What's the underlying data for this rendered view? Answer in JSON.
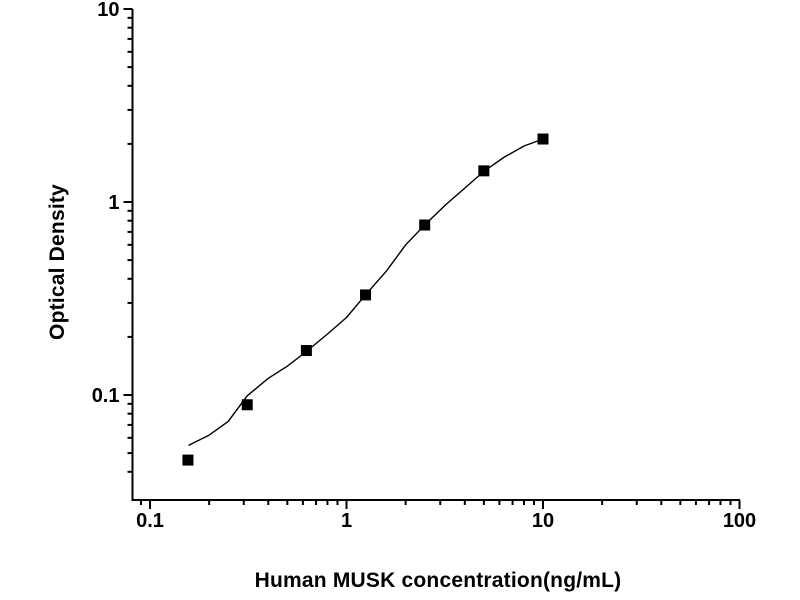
{
  "chart_data": {
    "type": "scatter",
    "title": "",
    "xlabel": "Human MUSK concentration(ng/mL)",
    "ylabel": "Optical Density",
    "x_scale": "log",
    "y_scale": "log",
    "xlim": [
      0.082,
      100
    ],
    "ylim": [
      0.029,
      10
    ],
    "grid": false,
    "legend": "none",
    "colors": {
      "axis": "#000000",
      "marker": "#000000",
      "curve": "#000000",
      "background": "#ffffff"
    },
    "x_ticks": {
      "majors": [
        0.1,
        1,
        10,
        100
      ],
      "labels": [
        "0.1",
        "1",
        "10",
        "100"
      ]
    },
    "y_ticks": {
      "majors": [
        0.1,
        1,
        10
      ],
      "labels": [
        "0.1",
        "1",
        "10"
      ]
    },
    "series": [
      {
        "name": "standard-points",
        "type": "scatter",
        "marker": "square",
        "color": "#000000",
        "points": [
          {
            "x": 0.156,
            "y": 0.046
          },
          {
            "x": 0.3125,
            "y": 0.089
          },
          {
            "x": 0.625,
            "y": 0.17
          },
          {
            "x": 1.25,
            "y": 0.33
          },
          {
            "x": 2.5,
            "y": 0.76
          },
          {
            "x": 5,
            "y": 1.45
          },
          {
            "x": 10,
            "y": 2.12
          }
        ]
      },
      {
        "name": "fitted-curve",
        "type": "line",
        "color": "#000000",
        "points": [
          {
            "x": 0.158,
            "y": 0.055
          },
          {
            "x": 0.2,
            "y": 0.062
          },
          {
            "x": 0.25,
            "y": 0.073
          },
          {
            "x": 0.3125,
            "y": 0.099
          },
          {
            "x": 0.4,
            "y": 0.122
          },
          {
            "x": 0.5,
            "y": 0.141
          },
          {
            "x": 0.625,
            "y": 0.168
          },
          {
            "x": 0.8,
            "y": 0.207
          },
          {
            "x": 1.0,
            "y": 0.252
          },
          {
            "x": 1.25,
            "y": 0.33
          },
          {
            "x": 1.6,
            "y": 0.44
          },
          {
            "x": 2.0,
            "y": 0.6
          },
          {
            "x": 2.5,
            "y": 0.76
          },
          {
            "x": 3.2,
            "y": 0.97
          },
          {
            "x": 4.0,
            "y": 1.18
          },
          {
            "x": 5.0,
            "y": 1.44
          },
          {
            "x": 6.3,
            "y": 1.7
          },
          {
            "x": 8.0,
            "y": 1.95
          },
          {
            "x": 10.0,
            "y": 2.12
          }
        ]
      }
    ]
  }
}
